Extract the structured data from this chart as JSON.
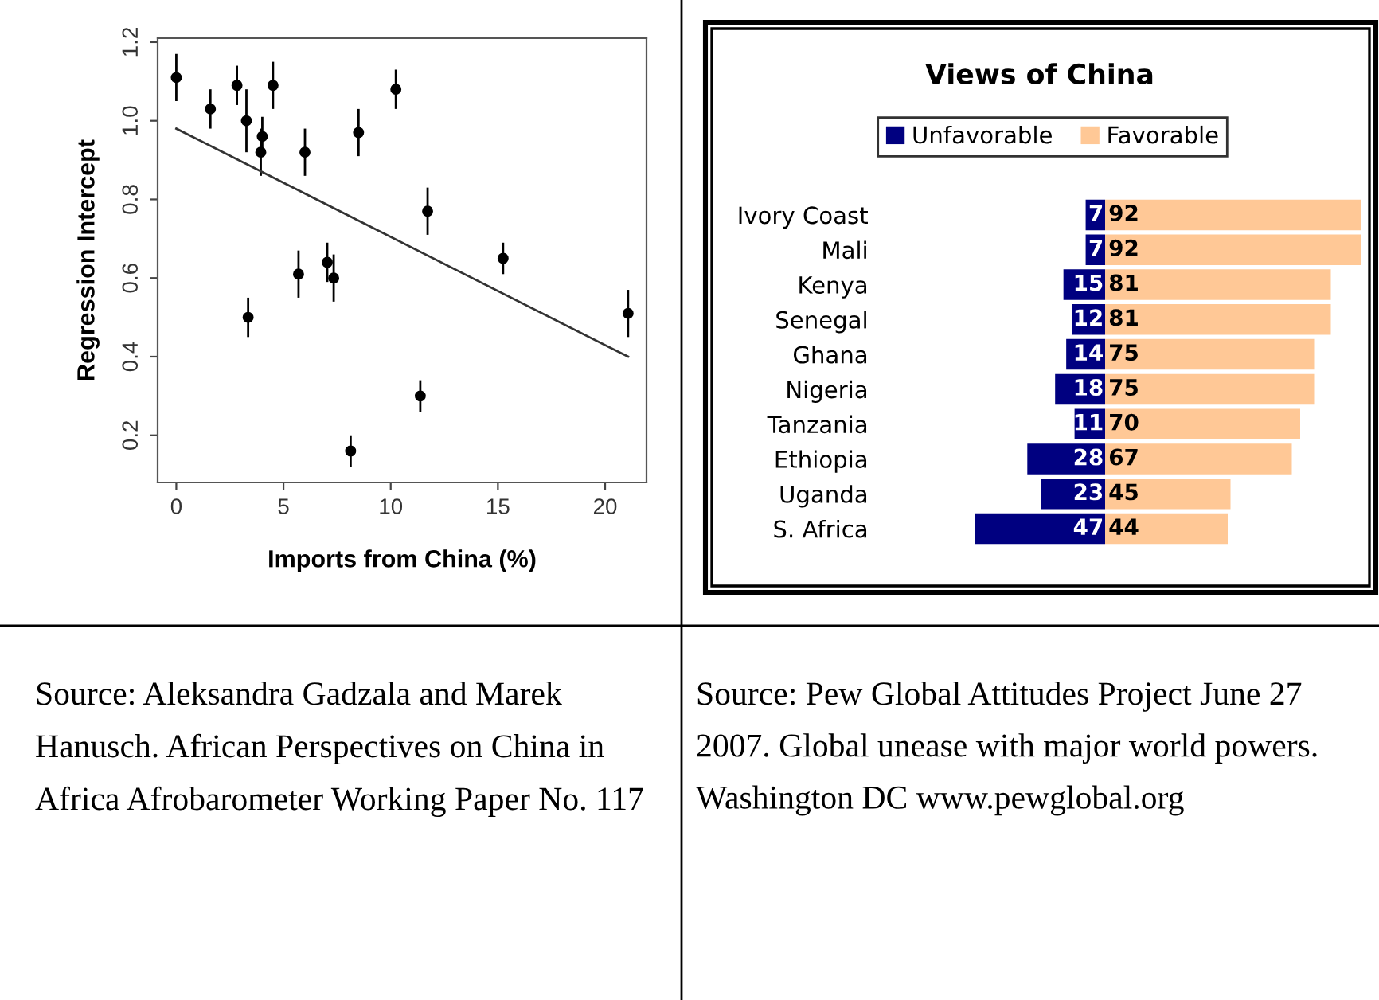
{
  "chart_data": [
    {
      "type": "scatter",
      "xlabel": "Imports from China (%)",
      "ylabel": "Regression Intercept",
      "series": [
        {
          "type": "scatter",
          "color": "#000000",
          "marker": "circle",
          "x": [
            0,
            1.59,
            2.83,
            3.27,
            3.35,
            3.94,
            4.01,
            4.51,
            5.7,
            6.0,
            7.04,
            7.34,
            8.13,
            8.5,
            10.24,
            11.38,
            11.72,
            15.24,
            21.07
          ],
          "values": [
            1.11,
            1.03,
            1.09,
            1.0,
            0.5,
            0.92,
            0.96,
            1.09,
            0.61,
            0.92,
            0.64,
            0.6,
            0.16,
            0.97,
            1.08,
            0.3,
            0.77,
            0.65,
            0.51
          ],
          "errors": [
            0.06,
            0.05,
            0.05,
            0.08,
            0.05,
            0.06,
            0.05,
            0.06,
            0.06,
            0.06,
            0.05,
            0.06,
            0.04,
            0.06,
            0.05,
            0.04,
            0.06,
            0.04,
            0.06
          ]
        },
        {
          "type": "line",
          "color": "#333333",
          "x": [
            0,
            21.07
          ],
          "values": [
            0.98,
            0.4
          ]
        }
      ],
      "xlim": [
        -0.87,
        21.93
      ],
      "ylim": [
        0.08,
        1.21
      ],
      "xticks": [
        0,
        5,
        10,
        15,
        20
      ],
      "yticks": [
        0.2,
        0.4,
        0.6,
        0.8,
        {
          "value": 1.0,
          "label": "1.0"
        },
        1.2
      ],
      "annotations": [
        "Source: Aleksandra Gadzala and Marek Hanusch. African Perspectives on China in Africa Afrobarometer Working Paper No. 117"
      ]
    },
    {
      "type": "bar",
      "orientation": "horizontal",
      "title": "Views of China",
      "legend": "top",
      "tick_labels": "y",
      "xlim": [
        47,
        0
      ],
      "categories": [
        "Ivory Coast",
        "Mali",
        "Kenya",
        "Senegal",
        "Ghana",
        "Nigeria",
        "Tanzania",
        "Ethiopia",
        "Uganda",
        "S. Africa"
      ],
      "series": [
        {
          "name": "Unfavorable",
          "color": "#000080",
          "values": [
            7,
            7,
            15,
            12,
            14,
            18,
            11,
            28,
            23,
            47
          ],
          "value_labels": [
            "7",
            "7",
            "15",
            "12",
            "14",
            "18",
            "11",
            "28",
            "23",
            "47"
          ]
        }
      ]
    },
    {
      "type": "bar",
      "orientation": "horizontal",
      "legend": "top",
      "tick_labels": false,
      "xlim": [
        0,
        92
      ],
      "categories": [
        null,
        null,
        null,
        null,
        null,
        null,
        null,
        null,
        null,
        null
      ],
      "series": [
        {
          "name": "Favorable",
          "color": "#ffc896",
          "values": [
            92,
            92,
            81,
            81,
            75,
            75,
            70,
            67,
            45,
            44
          ],
          "value_labels": [
            "92",
            "92",
            "81",
            "81",
            "75",
            "75",
            "70",
            "67",
            "45",
            "44"
          ]
        }
      ],
      "annotations": [
        "Source: Pew Global Attitudes Project June 27 2007. Global unease with major world powers. Washington DC www.pewglobal.org"
      ]
    }
  ]
}
